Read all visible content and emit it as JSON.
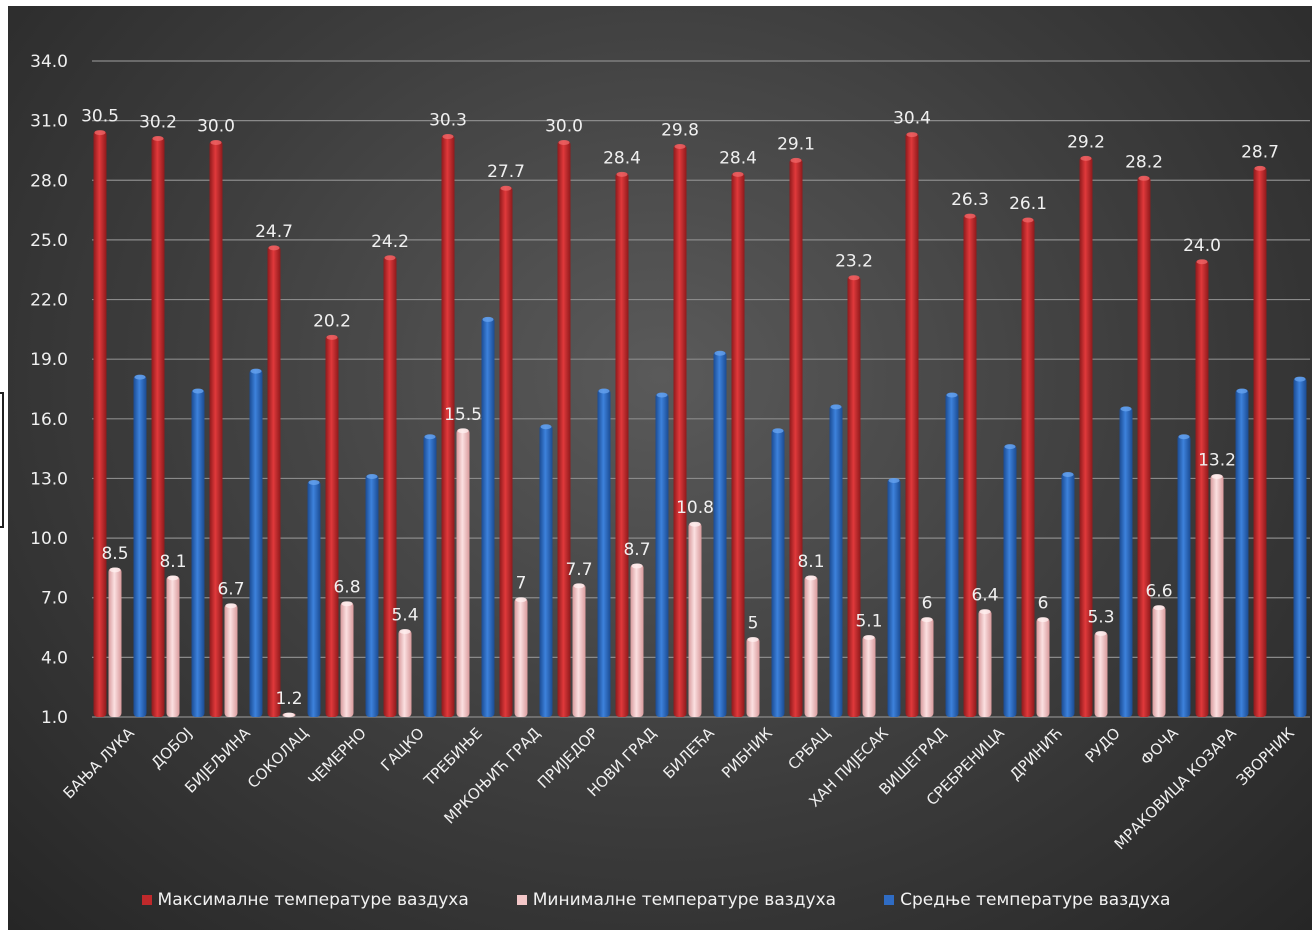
{
  "chart_data": {
    "type": "bar",
    "categories": [
      "БАЊА ЛУКА",
      "ДОБОЈ",
      "БИЈЕЉИНА",
      "СОКОЛАЦ",
      "ЧЕМЕРНО",
      "ГАЦКО",
      "ТРЕБИЊЕ",
      "МРКОЊИЋ ГРАД",
      "ПРИЈЕДОР",
      "НОВИ ГРАД",
      "БИЛЕЋА",
      "РИБНИК",
      "СРБАЦ",
      "ХАН ПИЈЕСАК",
      "ВИШЕГРАД",
      "СРЕБРЕНИЦА",
      "ДРИНИЋ",
      "РУДО",
      "ФОЧА",
      "МРАКОВИЦА КОЗАРА",
      "ЗВОРНИК"
    ],
    "series": [
      {
        "name": "Максималне температуре  ваздуха",
        "color": "#c0292b",
        "values": [
          30.5,
          30.2,
          30.0,
          24.7,
          20.2,
          24.2,
          30.3,
          27.7,
          30.0,
          28.4,
          29.8,
          28.4,
          29.1,
          23.2,
          30.4,
          26.3,
          26.1,
          29.2,
          28.2,
          24.0,
          28.7
        ],
        "labels": [
          "30.5",
          "30.2",
          "30.0",
          "24.7",
          "20.2",
          "24.2",
          "30.3",
          "27.7",
          "30.0",
          "28.4",
          "29.8",
          "28.4",
          "29.1",
          "23.2",
          "30.4",
          "26.3",
          "26.1",
          "29.2",
          "28.2",
          "24.0",
          "28.7"
        ]
      },
      {
        "name": "Минималне температуре ваздуха",
        "color": "#f3c7c8",
        "values": [
          8.5,
          8.1,
          6.7,
          1.2,
          6.8,
          5.4,
          15.5,
          7,
          7.7,
          8.7,
          10.8,
          5,
          8.1,
          5.1,
          6,
          6.4,
          6,
          5.3,
          6.6,
          13.2,
          null
        ],
        "labels": [
          "8.5",
          "8.1",
          "6.7",
          "1.2",
          "6.8",
          "5.4",
          "15.5",
          "7",
          "7.7",
          "8.7",
          "10.8",
          "5",
          "8.1",
          "5.1",
          "6",
          "6.4",
          "6",
          "5.3",
          "6.6",
          "13.2",
          ""
        ]
      },
      {
        "name": "Средње температуре ваздуха",
        "color": "#2f6cc4",
        "values": [
          18.2,
          17.5,
          18.5,
          12.9,
          13.2,
          15.2,
          21.1,
          15.7,
          17.5,
          17.3,
          19.4,
          15.5,
          16.7,
          13.0,
          17.3,
          14.7,
          13.3,
          16.6,
          15.2,
          17.5,
          18.1
        ]
      }
    ],
    "yticks": [
      "1.0",
      "4.0",
      "7.0",
      "10.0",
      "13.0",
      "16.0",
      "19.0",
      "22.0",
      "25.0",
      "28.0",
      "31.0",
      "34.0"
    ],
    "ylim": [
      1,
      34
    ],
    "grid": true,
    "legend": "bottom",
    "title": "",
    "xlabel": "",
    "ylabel": ""
  }
}
